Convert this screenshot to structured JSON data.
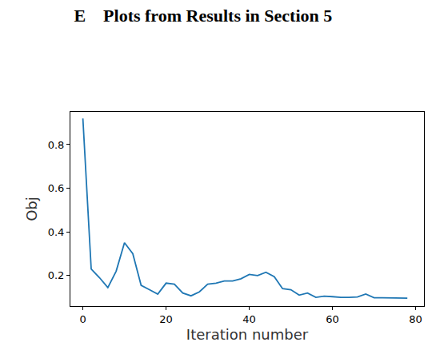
{
  "chart_data": {
    "type": "line",
    "title": "E    Plots from Results in Section 5",
    "x_label": "Iteration number",
    "y_label": "Obj",
    "x": [
      0,
      2,
      4,
      6,
      8,
      10,
      12,
      14,
      16,
      18,
      20,
      22,
      24,
      26,
      28,
      30,
      32,
      34,
      36,
      38,
      40,
      42,
      44,
      46,
      48,
      50,
      52,
      54,
      56,
      58,
      60,
      62,
      64,
      66,
      68,
      70,
      72,
      74,
      76,
      78
    ],
    "values": [
      0.92,
      0.23,
      0.19,
      0.145,
      0.22,
      0.35,
      0.3,
      0.155,
      0.135,
      0.115,
      0.165,
      0.16,
      0.12,
      0.107,
      0.125,
      0.16,
      0.165,
      0.175,
      0.175,
      0.185,
      0.205,
      0.2,
      0.215,
      0.195,
      0.14,
      0.135,
      0.11,
      0.12,
      0.1,
      0.105,
      0.103,
      0.1,
      0.1,
      0.102,
      0.115,
      0.098,
      0.098,
      0.097,
      0.097,
      0.096
    ],
    "color": "#1f77b4",
    "xlim": [
      -3,
      82
    ],
    "xticks": [
      0,
      20,
      40,
      60,
      80
    ],
    "ylim": [
      0.06,
      0.95
    ],
    "yticks": [
      0.2,
      0.4,
      0.6,
      0.8
    ],
    "grid": false
  }
}
